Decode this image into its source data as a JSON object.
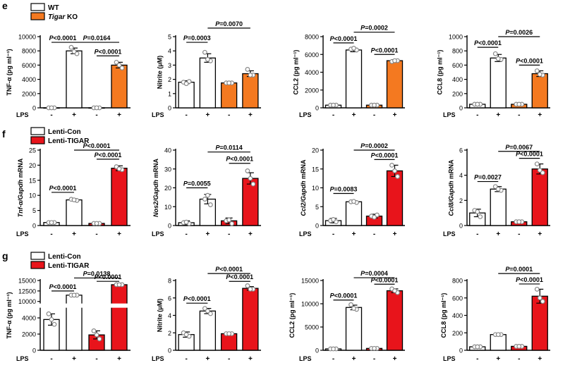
{
  "panels": [
    {
      "letter": "e",
      "legend": [
        {
          "label": "WT",
          "italic": false,
          "fill": "#ffffff"
        },
        {
          "label": "Tigar",
          "suffix": " KO",
          "italic": true,
          "fill": "#f47920"
        }
      ]
    },
    {
      "letter": "f",
      "legend": [
        {
          "label": "Lenti-Con",
          "italic": false,
          "fill": "#ffffff"
        },
        {
          "label": "Lenti-TIGAR",
          "italic": false,
          "fill": "#e8141b"
        }
      ]
    },
    {
      "letter": "g",
      "legend": [
        {
          "label": "Lenti-Con",
          "italic": false,
          "fill": "#ffffff"
        },
        {
          "label": "Lenti-TIGAR",
          "italic": false,
          "fill": "#e8141b"
        }
      ]
    }
  ],
  "lps_label": "LPS",
  "lps_signs": [
    "-",
    "+",
    "-",
    "+"
  ],
  "colors": {
    "wt": "#ffffff",
    "ko": "#f47920",
    "tigar": "#e8141b",
    "dot": "#888888",
    "edge": "#000000"
  },
  "chart_data": [
    {
      "type": "bar",
      "title": "",
      "panel": "e",
      "ylabel": "TNF-α (pg ml⁻¹)",
      "ylim": [
        0,
        10000
      ],
      "yticks": [
        0,
        2000,
        4000,
        6000,
        8000,
        10000
      ],
      "yticklabels": [
        "0",
        "2000",
        "4000",
        "6000",
        "8000",
        "10000"
      ],
      "categories": [
        "-",
        "+",
        "-",
        "+"
      ],
      "values": [
        0,
        8000,
        0,
        6000
      ],
      "errors": [
        50,
        400,
        50,
        400
      ],
      "fills": [
        "wt",
        "wt",
        "ko",
        "ko"
      ],
      "points": [
        [
          0,
          0,
          0
        ],
        [
          8500,
          7600,
          7900
        ],
        [
          0,
          0,
          0
        ],
        [
          6400,
          5600,
          6000
        ]
      ],
      "comparisons": [
        {
          "text": "P<0.0001",
          "from": 0,
          "to": 1,
          "y": 9200
        },
        {
          "text": "P<0.0001",
          "from": 2,
          "to": 3,
          "y": 7300
        },
        {
          "text": "P=0.0164",
          "from": 1,
          "to": 3,
          "y": 9200
        }
      ]
    },
    {
      "type": "bar",
      "title": "",
      "panel": "e",
      "ylabel": "Nitrite (μM)",
      "ylim": [
        0,
        5
      ],
      "yticks": [
        0,
        1,
        2,
        3,
        4,
        5
      ],
      "yticklabels": [
        "0",
        "1",
        "2",
        "3",
        "4",
        "5"
      ],
      "categories": [
        "-",
        "+",
        "-",
        "+"
      ],
      "values": [
        1.8,
        3.5,
        1.75,
        2.4
      ],
      "errors": [
        0.1,
        0.3,
        0.05,
        0.2
      ],
      "fills": [
        "wt",
        "wt",
        "ko",
        "ko"
      ],
      "points": [
        [
          1.8,
          1.85,
          1.7
        ],
        [
          3.9,
          3.3,
          3.4
        ],
        [
          1.75,
          1.75,
          1.75
        ],
        [
          2.7,
          2.3,
          2.3
        ]
      ],
      "comparisons": [
        {
          "text": "P=0.0003",
          "from": 0,
          "to": 1,
          "y": 4.6
        },
        {
          "text": "P=0.0070",
          "from": 1,
          "to": 3,
          "y": 5.6
        }
      ]
    },
    {
      "type": "bar",
      "title": "",
      "panel": "e",
      "ylabel": "CCL2 (pg ml⁻¹)",
      "ylim": [
        0,
        8000
      ],
      "yticks": [
        0,
        2000,
        4000,
        6000,
        8000
      ],
      "yticklabels": [
        "0",
        "2000",
        "4000",
        "6000",
        "8000"
      ],
      "categories": [
        "-",
        "+",
        "-",
        "+"
      ],
      "values": [
        300,
        6500,
        300,
        5300
      ],
      "errors": [
        50,
        200,
        50,
        120
      ],
      "fills": [
        "wt",
        "wt",
        "ko",
        "ko"
      ],
      "points": [
        [
          300,
          300,
          300
        ],
        [
          6600,
          6500,
          6700
        ],
        [
          300,
          300,
          300
        ],
        [
          5200,
          5300,
          5300
        ]
      ],
      "comparisons": [
        {
          "text": "P<0.0001",
          "from": 0,
          "to": 1,
          "y": 7300
        },
        {
          "text": "P<0.0001",
          "from": 2,
          "to": 3,
          "y": 6000
        },
        {
          "text": "P=0.0002",
          "from": 1,
          "to": 3,
          "y": 8500
        }
      ]
    },
    {
      "type": "bar",
      "title": "",
      "panel": "e",
      "ylabel": "CCL8 (pg ml⁻¹)",
      "ylim": [
        0,
        1000
      ],
      "yticks": [
        0,
        200,
        400,
        600,
        800,
        1000
      ],
      "yticklabels": [
        "0",
        "200",
        "400",
        "600",
        "800",
        "1000"
      ],
      "categories": [
        "-",
        "+",
        "-",
        "+"
      ],
      "values": [
        50,
        700,
        50,
        480
      ],
      "errors": [
        10,
        50,
        10,
        40
      ],
      "fills": [
        "wt",
        "wt",
        "ko",
        "ko"
      ],
      "points": [
        [
          50,
          50,
          50
        ],
        [
          760,
          680,
          690
        ],
        [
          50,
          50,
          50
        ],
        [
          520,
          460,
          470
        ]
      ],
      "comparisons": [
        {
          "text": "P<0.0001",
          "from": 0,
          "to": 1,
          "y": 850
        },
        {
          "text": "P<0.0001",
          "from": 2,
          "to": 3,
          "y": 600
        },
        {
          "text": "P=0.0026",
          "from": 1,
          "to": 3,
          "y": 1000
        }
      ]
    },
    {
      "type": "bar",
      "title": "",
      "panel": "f",
      "ylabel": "Tnf-α/Gapdh mRNA",
      "ylim": [
        0,
        25
      ],
      "yticks": [
        0,
        5,
        10,
        15,
        20,
        25
      ],
      "yticklabels": [
        "0",
        "5",
        "10",
        "15",
        "20",
        "25"
      ],
      "categories": [
        "-",
        "+",
        "-",
        "+"
      ],
      "values": [
        1,
        8.5,
        0.7,
        19
      ],
      "errors": [
        0.2,
        0.4,
        0.2,
        0.8
      ],
      "fills": [
        "wt",
        "wt",
        "tigar",
        "tigar"
      ],
      "points": [
        [
          1,
          1,
          1
        ],
        [
          8.7,
          8.3,
          8.5
        ],
        [
          0.7,
          0.7,
          0.7
        ],
        [
          19.5,
          18.5,
          18.8
        ]
      ],
      "comparisons": [
        {
          "text": "P<0.0001",
          "from": 0,
          "to": 1,
          "y": 11
        },
        {
          "text": "P<0.0001",
          "from": 2,
          "to": 3,
          "y": 22
        },
        {
          "text": "P<0.0001",
          "from": 1,
          "to": 3,
          "y": 25
        }
      ]
    },
    {
      "type": "bar",
      "title": "",
      "panel": "f",
      "ylabel": "Nos2/Gapdh mRNA",
      "ylim": [
        0,
        40
      ],
      "yticks": [
        0,
        10,
        20,
        30,
        40
      ],
      "yticklabels": [
        "0",
        "10",
        "20",
        "30",
        "40"
      ],
      "categories": [
        "-",
        "+",
        "-",
        "+"
      ],
      "values": [
        1.5,
        14,
        2.5,
        25
      ],
      "errors": [
        1,
        2.5,
        1.5,
        3
      ],
      "fills": [
        "wt",
        "wt",
        "tigar",
        "tigar"
      ],
      "points": [
        [
          1.5,
          1,
          1.8
        ],
        [
          14,
          11,
          16
        ],
        [
          2.5,
          1,
          3
        ],
        [
          29,
          22,
          25
        ]
      ],
      "comparisons": [
        {
          "text": "P=0.0055",
          "from": 0,
          "to": 1,
          "y": 20
        },
        {
          "text": "P<0.0001",
          "from": 2,
          "to": 3,
          "y": 33
        },
        {
          "text": "P=0.0114",
          "from": 1,
          "to": 3,
          "y": 39
        }
      ]
    },
    {
      "type": "bar",
      "title": "",
      "panel": "f",
      "ylabel": "Ccl2/Gapdh mRNA",
      "ylim": [
        0,
        20
      ],
      "yticks": [
        0,
        5,
        10,
        15,
        20
      ],
      "yticklabels": [
        "0",
        "5",
        "10",
        "15",
        "20"
      ],
      "categories": [
        "-",
        "+",
        "-",
        "+"
      ],
      "values": [
        1.3,
        6.3,
        2.5,
        14.5
      ],
      "errors": [
        0.6,
        0.3,
        0.5,
        1.5
      ],
      "fills": [
        "wt",
        "wt",
        "tigar",
        "tigar"
      ],
      "points": [
        [
          1.3,
          1.0,
          1.6
        ],
        [
          6.3,
          6.1,
          6.4
        ],
        [
          2.5,
          2.8,
          2.2
        ],
        [
          16,
          13,
          14.5
        ]
      ],
      "comparisons": [
        {
          "text": "P=0.0083",
          "from": 0,
          "to": 1,
          "y": 8.5
        },
        {
          "text": "P<0.0001",
          "from": 2,
          "to": 3,
          "y": 17.5
        },
        {
          "text": "P=0.0002",
          "from": 1,
          "to": 3,
          "y": 20
        }
      ]
    },
    {
      "type": "bar",
      "title": "",
      "panel": "f",
      "ylabel": "Ccl8/Gapdh mRNA",
      "ylim": [
        0,
        6
      ],
      "yticks": [
        0,
        2,
        4,
        6
      ],
      "yticklabels": [
        "0",
        "2",
        "4",
        "6"
      ],
      "categories": [
        "-",
        "+",
        "-",
        "+"
      ],
      "values": [
        1,
        2.9,
        0.3,
        4.5
      ],
      "errors": [
        0.3,
        0.2,
        0.1,
        0.4
      ],
      "fills": [
        "wt",
        "wt",
        "tigar",
        "tigar"
      ],
      "points": [
        [
          1.2,
          0.7,
          1.1
        ],
        [
          3.1,
          2.8,
          2.9
        ],
        [
          0.3,
          0.3,
          0.3
        ],
        [
          4.9,
          4.2,
          4.4
        ]
      ],
      "comparisons": [
        {
          "text": "P=0.0027",
          "from": 0,
          "to": 1,
          "y": 3.5
        },
        {
          "text": "P<0.0001",
          "from": 2,
          "to": 3,
          "y": 5.35
        },
        {
          "text": "P=0.0067",
          "from": 1,
          "to": 3,
          "y": 5.9
        }
      ]
    },
    {
      "type": "bar",
      "title": "",
      "panel": "g",
      "ylabel": "TNF-α (pg ml⁻¹)",
      "ylim": [
        0,
        15000
      ],
      "axis_break": {
        "low_max": 5000,
        "high_min": 10000
      },
      "yticks": [
        0,
        2000,
        4000,
        10000,
        12500,
        15000
      ],
      "yticklabels": [
        "0",
        "2000",
        "4000",
        "10000",
        "12500",
        "15000"
      ],
      "categories": [
        "-",
        "+",
        "-",
        "+"
      ],
      "values": [
        3800,
        11500,
        1900,
        14000
      ],
      "errors": [
        700,
        100,
        500,
        100
      ],
      "fills": [
        "wt",
        "wt",
        "tigar",
        "tigar"
      ],
      "points": [
        [
          4500,
          3200,
          3800
        ],
        [
          11500,
          11500,
          11500
        ],
        [
          2400,
          1400,
          1900
        ],
        [
          14000,
          14000,
          14000
        ]
      ],
      "comparisons": [
        {
          "text": "P<0.0001",
          "from": 0,
          "to": 1,
          "y": 12500
        },
        {
          "text": "P<0.0001",
          "from": 2,
          "to": 3,
          "y": 14800
        },
        {
          "text": "P=0.0138",
          "from": 1,
          "to": 3,
          "y": 15600
        }
      ]
    },
    {
      "type": "bar",
      "title": "",
      "panel": "g",
      "ylabel": "Nitrite (μM)",
      "ylim": [
        0,
        8
      ],
      "yticks": [
        0,
        2,
        4,
        6,
        8
      ],
      "yticklabels": [
        "0",
        "2",
        "4",
        "6",
        "8"
      ],
      "categories": [
        "-",
        "+",
        "-",
        "+"
      ],
      "values": [
        1.8,
        4.5,
        1.9,
        7.1
      ],
      "errors": [
        0.3,
        0.3,
        0.05,
        0.2
      ],
      "fills": [
        "wt",
        "wt",
        "tigar",
        "tigar"
      ],
      "points": [
        [
          2.0,
          1.6,
          1.8
        ],
        [
          4.8,
          4.2,
          4.5
        ],
        [
          1.9,
          1.9,
          1.9
        ],
        [
          7.4,
          7.0,
          7.0
        ]
      ],
      "comparisons": [
        {
          "text": "P<0.0001",
          "from": 0,
          "to": 1,
          "y": 5.4
        },
        {
          "text": "P<0.0001",
          "from": 2,
          "to": 3,
          "y": 7.9
        },
        {
          "text": "P<0.0001",
          "from": 1,
          "to": 3,
          "y": 8.8
        }
      ]
    },
    {
      "type": "bar",
      "title": "",
      "panel": "g",
      "ylabel": "CCL2 (pg ml⁻¹)",
      "ylim": [
        0,
        15000
      ],
      "yticks": [
        0,
        5000,
        10000,
        15000
      ],
      "yticklabels": [
        "0",
        "5000",
        "10000",
        "15000"
      ],
      "categories": [
        "-",
        "+",
        "-",
        "+"
      ],
      "values": [
        300,
        9200,
        400,
        12800
      ],
      "errors": [
        100,
        500,
        100,
        400
      ],
      "fills": [
        "wt",
        "wt",
        "tigar",
        "tigar"
      ],
      "points": [
        [
          300,
          300,
          300
        ],
        [
          9800,
          8800,
          9000
        ],
        [
          400,
          400,
          400
        ],
        [
          13200,
          12400,
          12800
        ]
      ],
      "comparisons": [
        {
          "text": "P<0.0001",
          "from": 0,
          "to": 1,
          "y": 10800
        },
        {
          "text": "P<0.0001",
          "from": 2,
          "to": 3,
          "y": 14200
        },
        {
          "text": "P=0.0004",
          "from": 1,
          "to": 3,
          "y": 15600
        }
      ]
    },
    {
      "type": "bar",
      "title": "",
      "panel": "g",
      "ylabel": "CCL8 (pg ml⁻¹)",
      "ylim": [
        0,
        800
      ],
      "yticks": [
        0,
        200,
        400,
        600,
        800
      ],
      "yticklabels": [
        "0",
        "200",
        "400",
        "600",
        "800"
      ],
      "categories": [
        "-",
        "+",
        "-",
        "+"
      ],
      "values": [
        40,
        180,
        45,
        620
      ],
      "errors": [
        5,
        5,
        5,
        80
      ],
      "fills": [
        "wt",
        "wt",
        "tigar",
        "tigar"
      ],
      "points": [
        [
          40,
          40,
          40
        ],
        [
          180,
          180,
          180
        ],
        [
          45,
          45,
          45
        ],
        [
          700,
          560,
          600
        ]
      ],
      "comparisons": [
        {
          "text": "P<0.0001",
          "from": 2,
          "to": 3,
          "y": 760
        },
        {
          "text": "P=0.0001",
          "from": 1,
          "to": 3,
          "y": 880
        }
      ]
    }
  ]
}
